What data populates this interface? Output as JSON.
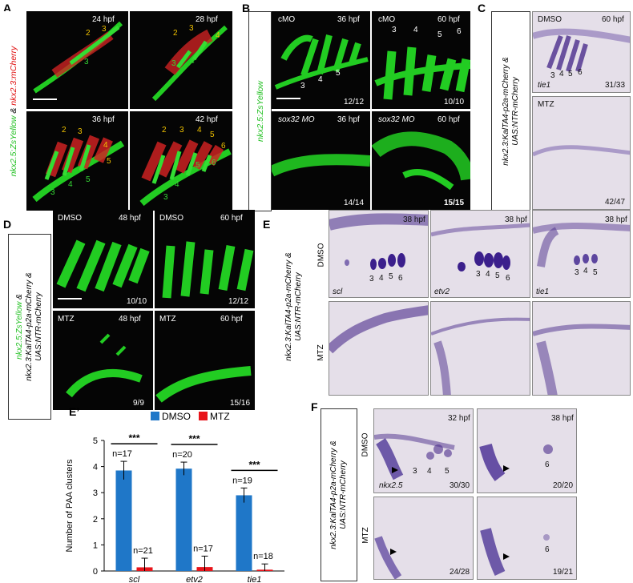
{
  "panel_labels": {
    "A": "A",
    "B": "B",
    "C": "C",
    "D": "D",
    "E": "E",
    "Eprime": "E’",
    "F": "F"
  },
  "A": {
    "side_label": {
      "green": "nkx2.5:ZsYellow",
      "and": " & ",
      "red": "nkx2.3:mCherry"
    },
    "tiles": [
      {
        "time": "24 hpf",
        "nums_yellow": [
          "2",
          "3"
        ],
        "nums_green": [
          "3"
        ]
      },
      {
        "time": "28 hpf",
        "nums_yellow": [
          "2",
          "3",
          "4"
        ],
        "nums_green": [
          "3",
          "4"
        ]
      },
      {
        "time": "36 hpf",
        "nums_yellow": [
          "2",
          "3",
          "4",
          "5"
        ],
        "nums_green": [
          "3",
          "4",
          "5"
        ]
      },
      {
        "time": "42 hpf",
        "nums_yellow": [
          "2",
          "3",
          "4",
          "5",
          "6"
        ],
        "nums_green": [
          "3",
          "4",
          "5",
          "6"
        ]
      }
    ]
  },
  "B": {
    "side_label": "nkx2.5:ZsYellow",
    "tiles": [
      {
        "cond": "cMO",
        "time": "36 hpf",
        "count": "12/12",
        "nums": [
          "3",
          "4",
          "5"
        ]
      },
      {
        "cond": "cMO",
        "time": "60 hpf",
        "count": "10/10",
        "nums": [
          "3",
          "4",
          "5",
          "6"
        ]
      },
      {
        "cond": "sox32 MO",
        "time": "36 hpf",
        "count": "14/14"
      },
      {
        "cond": "sox32 MO",
        "time": "60 hpf",
        "count": "15/15"
      }
    ]
  },
  "C": {
    "side_label": [
      "nkx2.3:KalTA4-p2a-mCherry &",
      "UAS:NTR-mCherry"
    ],
    "tiles": [
      {
        "cond": "DMSO",
        "time": "60 hpf",
        "gene": "tie1",
        "count": "31/33",
        "nums": [
          "3",
          "4",
          "5",
          "6"
        ]
      },
      {
        "cond": "MTZ",
        "count": "42/47"
      }
    ]
  },
  "D": {
    "side_label": {
      "green": "nkx2.5:ZsYellow",
      "and": " &",
      "line2": "nkx2.3:KalTA4-p2a-mCherry &",
      "line3": "UAS:NTR-mCherry"
    },
    "tiles": [
      {
        "cond": "DMSO",
        "time": "48 hpf",
        "count": "10/10"
      },
      {
        "cond": "DMSO",
        "time": "60 hpf",
        "count": "12/12"
      },
      {
        "cond": "MTZ",
        "time": "48 hpf",
        "count": "9/9"
      },
      {
        "cond": "MTZ",
        "time": "60 hpf",
        "count": "15/16"
      }
    ]
  },
  "E": {
    "side_label": [
      "nkx2.3:KalTA4-p2a-mCherry &",
      "UAS:NTR-mCherry"
    ],
    "row_labels": [
      "DMSO",
      "MTZ"
    ],
    "tiles": [
      {
        "time": "38 hpf",
        "gene": "scl",
        "nums": [
          "3",
          "4",
          "5",
          "6"
        ]
      },
      {
        "time": "38 hpf",
        "gene": "etv2",
        "nums": [
          "3",
          "4",
          "5",
          "6"
        ]
      },
      {
        "time": "38 hpf",
        "gene": "tie1",
        "nums": [
          "3",
          "4",
          "5"
        ]
      }
    ]
  },
  "F": {
    "side_label": [
      "nkx2.3:KalTA4-p2a-mCherry &",
      "UAS:NTR-mCherry"
    ],
    "row_labels": [
      "DMSO",
      "MTZ"
    ],
    "tiles": [
      {
        "time": "32 hpf",
        "gene": "nkx2.5",
        "count": "30/30",
        "nums": [
          "3",
          "4",
          "5"
        ]
      },
      {
        "time": "38 hpf",
        "count": "20/20",
        "nums": [
          "6"
        ]
      },
      {
        "count": "24/28"
      },
      {
        "count": "19/21",
        "nums": [
          "6"
        ]
      }
    ]
  },
  "chart_data": {
    "type": "bar",
    "ylabel": "Number of PAA clusters",
    "ylim": [
      0,
      5
    ],
    "yticks": [
      "0",
      "1",
      "2",
      "3",
      "4",
      "5"
    ],
    "categories": [
      "scl",
      "etv2",
      "tie1"
    ],
    "series": [
      {
        "name": "DMSO",
        "color": "#1f77c8",
        "values": [
          3.85,
          3.92,
          2.9
        ],
        "errors": [
          0.35,
          0.25,
          0.28
        ],
        "n": [
          "n=17",
          "n=20",
          "n=19"
        ]
      },
      {
        "name": "MTZ",
        "color": "#e8141a",
        "values": [
          0.14,
          0.15,
          0.05
        ],
        "errors": [
          0.35,
          0.42,
          0.22
        ],
        "n": [
          "n=21",
          "n=17",
          "n=18"
        ]
      }
    ],
    "significance": [
      "***",
      "***",
      "***"
    ],
    "legend_position": "top"
  }
}
